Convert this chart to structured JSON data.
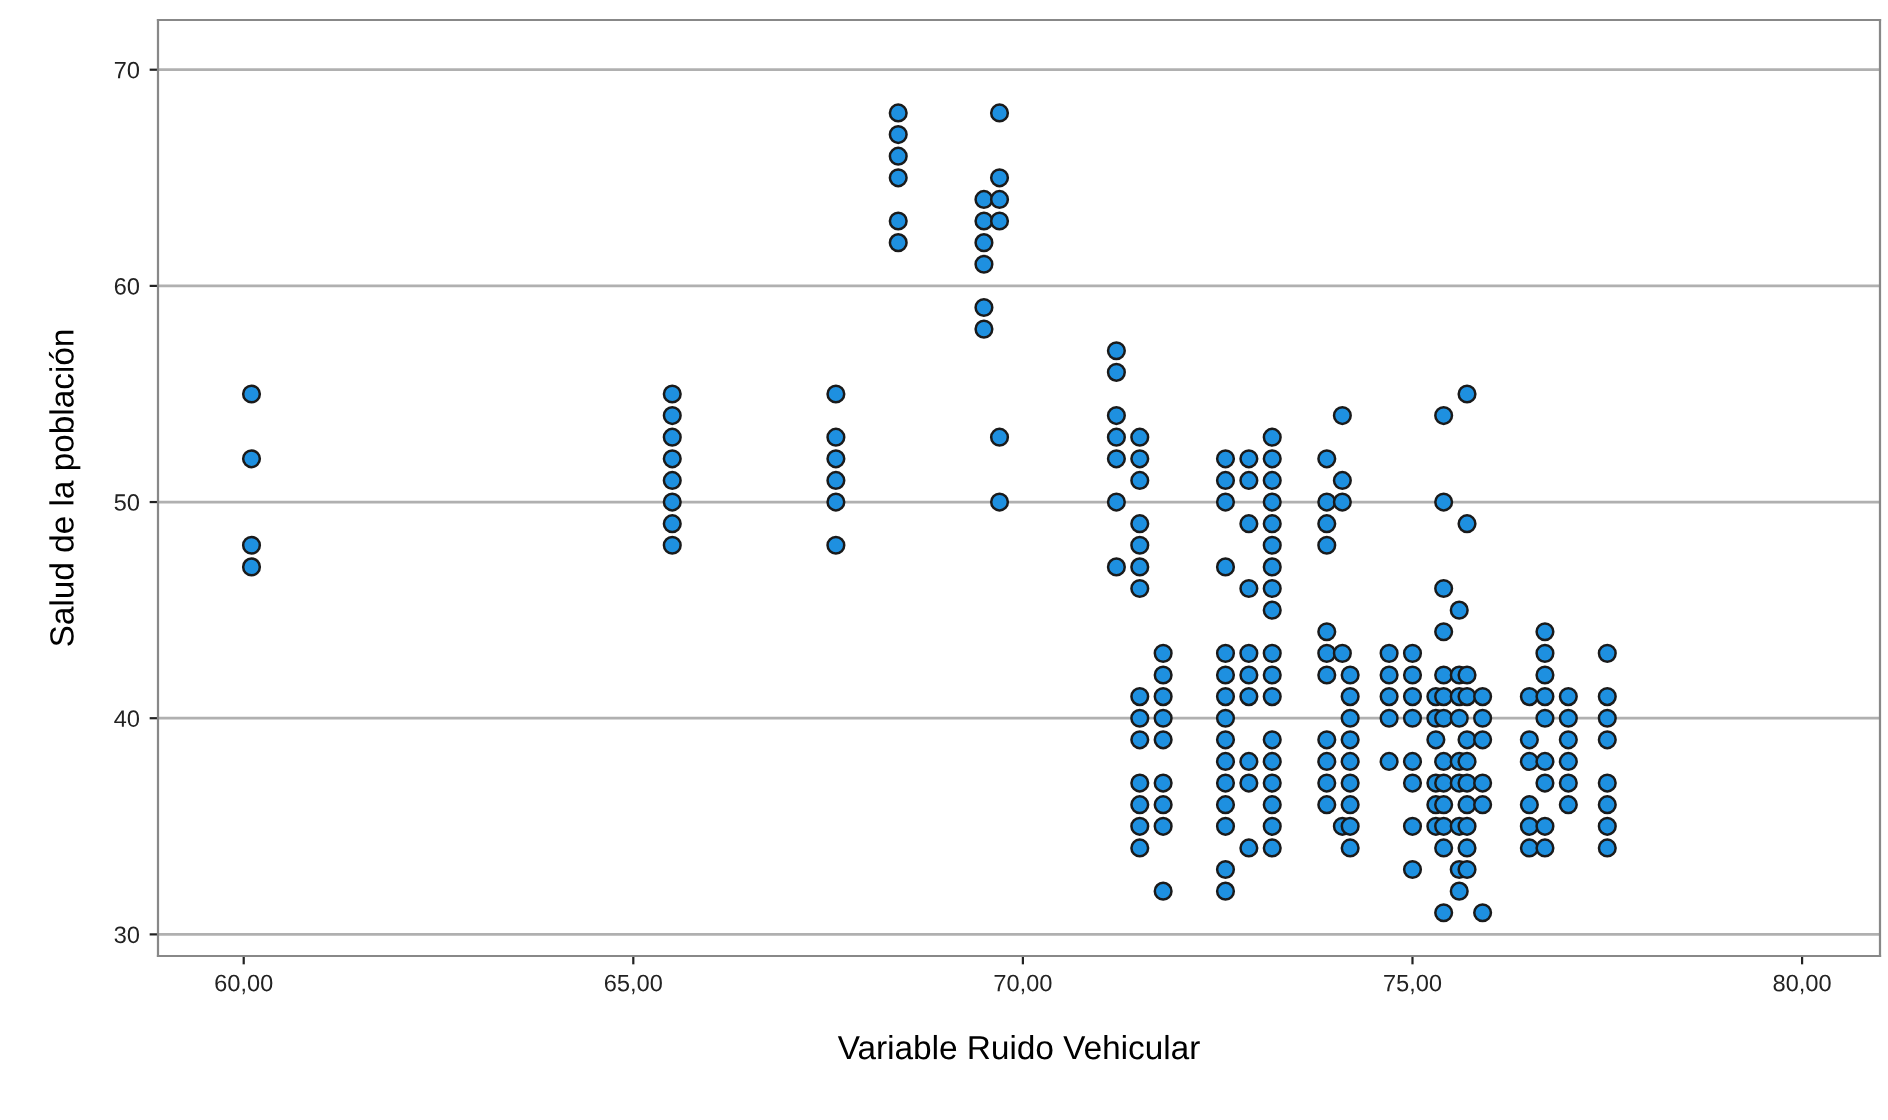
{
  "chart_data": {
    "type": "scatter",
    "xlabel": "Variable Ruido Vehicular",
    "ylabel": "Salud de la población",
    "xlim": [
      58.9,
      81.0
    ],
    "ylim": [
      29.0,
      72.3
    ],
    "xticks": [
      {
        "value": 60,
        "label": "60,00"
      },
      {
        "value": 65,
        "label": "65,00"
      },
      {
        "value": 70,
        "label": "70,00"
      },
      {
        "value": 75,
        "label": "75,00"
      },
      {
        "value": 80,
        "label": "80,00"
      }
    ],
    "yticks": [
      30,
      40,
      50,
      60,
      70
    ],
    "grid": "y",
    "marker": "circle",
    "series": [
      {
        "color": "#1e90e0",
        "x": [
          60.1,
          60.1,
          60.1,
          60.1,
          65.5,
          65.5,
          65.5,
          65.5,
          65.5,
          65.5,
          65.5,
          65.5,
          67.6,
          67.6,
          67.6,
          67.6,
          67.6,
          67.6,
          68.4,
          68.4,
          68.4,
          68.4,
          68.4,
          68.4,
          69.5,
          69.5,
          69.5,
          69.5,
          69.5,
          69.5,
          69.7,
          69.7,
          69.7,
          69.7,
          69.7,
          69.7,
          71.2,
          71.2,
          71.2,
          71.2,
          71.2,
          71.2,
          71.2,
          71.5,
          71.5,
          71.5,
          71.5,
          71.5,
          71.5,
          71.5,
          71.5,
          71.5,
          71.5,
          71.5,
          71.5,
          71.5,
          71.5,
          71.8,
          71.8,
          71.8,
          71.8,
          71.8,
          71.8,
          71.8,
          71.8,
          71.8,
          72.6,
          72.6,
          72.6,
          72.6,
          72.6,
          72.6,
          72.6,
          72.6,
          72.6,
          72.6,
          72.6,
          72.6,
          72.6,
          72.6,
          72.6,
          72.9,
          72.9,
          72.9,
          72.9,
          72.9,
          72.9,
          72.9,
          72.9,
          72.9,
          72.9,
          73.2,
          73.2,
          73.2,
          73.2,
          73.2,
          73.2,
          73.2,
          73.2,
          73.2,
          73.2,
          73.2,
          73.2,
          73.2,
          73.2,
          73.2,
          73.2,
          73.2,
          73.2,
          73.9,
          73.9,
          73.9,
          73.9,
          73.9,
          73.9,
          73.9,
          73.9,
          73.9,
          73.9,
          73.9,
          74.1,
          74.1,
          74.1,
          74.1,
          74.1,
          74.2,
          74.2,
          74.2,
          74.2,
          74.2,
          74.2,
          74.2,
          74.2,
          74.2,
          74.7,
          74.7,
          74.7,
          74.7,
          74.7,
          75.0,
          75.0,
          75.0,
          75.0,
          75.0,
          75.0,
          75.0,
          75.0,
          75.3,
          75.3,
          75.3,
          75.3,
          75.3,
          75.3,
          75.4,
          75.4,
          75.4,
          75.4,
          75.4,
          75.4,
          75.4,
          75.4,
          75.4,
          75.4,
          75.4,
          75.4,
          75.4,
          75.6,
          75.6,
          75.6,
          75.6,
          75.6,
          75.6,
          75.6,
          75.6,
          75.6,
          75.7,
          75.7,
          75.7,
          75.7,
          75.7,
          75.7,
          75.7,
          75.7,
          75.7,
          75.7,
          75.7,
          75.9,
          75.9,
          75.9,
          75.9,
          75.9,
          75.9,
          76.5,
          76.5,
          76.5,
          76.5,
          76.5,
          76.5,
          76.7,
          76.7,
          76.7,
          76.7,
          76.7,
          76.7,
          76.7,
          76.7,
          76.7,
          77.0,
          77.0,
          77.0,
          77.0,
          77.0,
          77.0,
          77.5,
          77.5,
          77.5,
          77.5,
          77.5,
          77.5,
          77.5,
          77.5
        ],
        "values": [
          55,
          52,
          48,
          47,
          55,
          54,
          53,
          52,
          51,
          50,
          49,
          48,
          55,
          53,
          52,
          51,
          50,
          48,
          68,
          67,
          66,
          65,
          63,
          62,
          64,
          63,
          62,
          61,
          59,
          58,
          68,
          65,
          64,
          63,
          53,
          50,
          57,
          56,
          54,
          53,
          52,
          50,
          47,
          53,
          52,
          51,
          49,
          48,
          47,
          46,
          41,
          40,
          39,
          37,
          36,
          35,
          34,
          43,
          42,
          41,
          40,
          39,
          37,
          36,
          35,
          32,
          52,
          51,
          50,
          47,
          43,
          42,
          41,
          40,
          39,
          38,
          37,
          36,
          35,
          33,
          32,
          52,
          51,
          49,
          46,
          43,
          42,
          41,
          38,
          37,
          34,
          53,
          52,
          51,
          50,
          49,
          48,
          47,
          46,
          45,
          43,
          42,
          41,
          39,
          38,
          37,
          36,
          35,
          34,
          52,
          50,
          49,
          48,
          44,
          43,
          42,
          39,
          38,
          37,
          36,
          54,
          51,
          50,
          43,
          35,
          42,
          41,
          40,
          39,
          38,
          37,
          36,
          35,
          34,
          43,
          42,
          41,
          40,
          38,
          43,
          42,
          41,
          40,
          38,
          37,
          35,
          33,
          41,
          40,
          39,
          37,
          36,
          35,
          54,
          50,
          46,
          44,
          42,
          41,
          40,
          38,
          37,
          36,
          35,
          34,
          31,
          45,
          42,
          41,
          40,
          38,
          37,
          35,
          33,
          32,
          55,
          49,
          42,
          41,
          39,
          38,
          37,
          36,
          35,
          34,
          33,
          41,
          40,
          39,
          37,
          36,
          31,
          41,
          39,
          38,
          36,
          35,
          34,
          44,
          43,
          42,
          41,
          40,
          38,
          37,
          35,
          34,
          41,
          40,
          39,
          38,
          37,
          36,
          43,
          41,
          40,
          39,
          37,
          36,
          35,
          34
        ]
      }
    ]
  }
}
